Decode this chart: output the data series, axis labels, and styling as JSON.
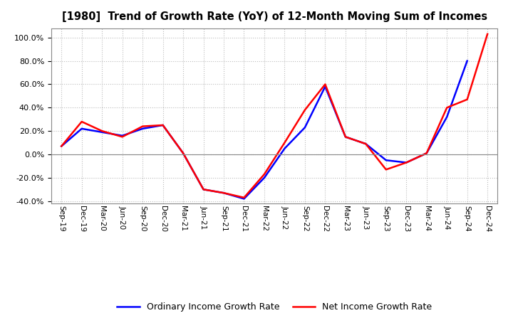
{
  "title": "[1980]  Trend of Growth Rate (YoY) of 12-Month Moving Sum of Incomes",
  "x_labels": [
    "Sep-19",
    "Dec-19",
    "Mar-20",
    "Jun-20",
    "Sep-20",
    "Dec-20",
    "Mar-21",
    "Jun-21",
    "Sep-21",
    "Dec-21",
    "Mar-22",
    "Jun-22",
    "Sep-22",
    "Dec-22",
    "Mar-23",
    "Jun-23",
    "Sep-23",
    "Dec-23",
    "Mar-24",
    "Jun-24",
    "Sep-24",
    "Dec-24"
  ],
  "ordinary_income": [
    0.07,
    0.22,
    0.19,
    0.16,
    0.22,
    0.25,
    0.01,
    -0.3,
    -0.33,
    -0.38,
    -0.2,
    0.05,
    0.23,
    0.58,
    0.15,
    0.09,
    -0.05,
    -0.07,
    0.01,
    0.32,
    0.8,
    null
  ],
  "net_income": [
    0.07,
    0.28,
    0.2,
    0.15,
    0.24,
    0.25,
    0.01,
    -0.3,
    -0.33,
    -0.37,
    -0.17,
    0.1,
    0.38,
    0.6,
    0.15,
    0.09,
    -0.13,
    -0.07,
    0.01,
    0.4,
    0.47,
    1.03
  ],
  "ordinary_color": "#0000ff",
  "net_color": "#ff0000",
  "ylim": [
    -0.42,
    1.08
  ],
  "yticks": [
    -0.4,
    -0.2,
    0.0,
    0.2,
    0.4,
    0.6,
    0.8,
    1.0
  ],
  "legend_ordinary": "Ordinary Income Growth Rate",
  "legend_net": "Net Income Growth Rate",
  "background_color": "#ffffff",
  "grid_color": "#bbbbbb",
  "line_width": 1.8
}
